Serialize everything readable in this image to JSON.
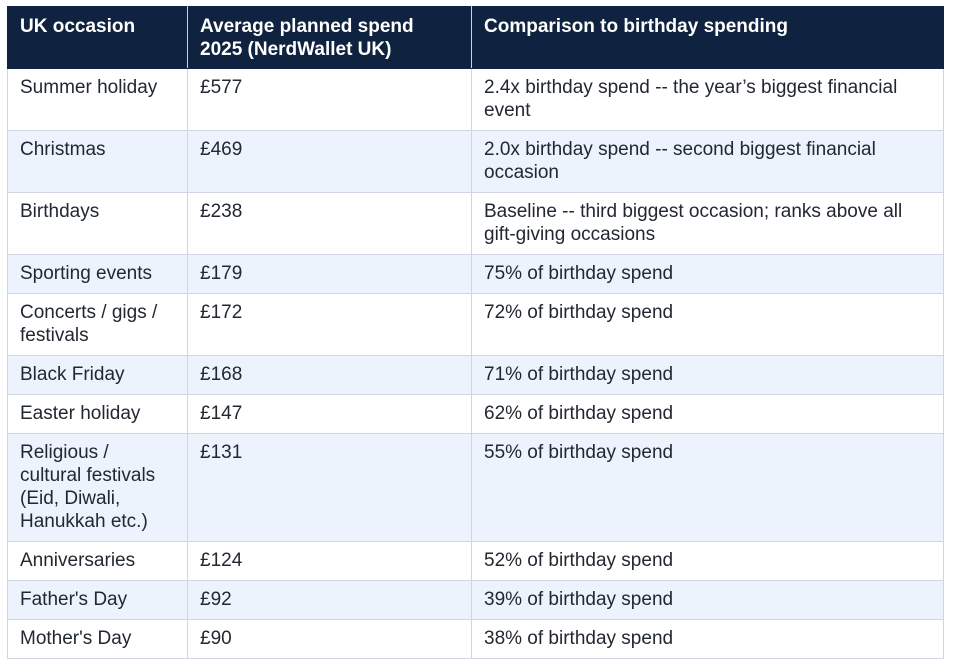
{
  "table": {
    "headers": [
      "UK occasion",
      "Average planned spend 2025 (NerdWallet UK)",
      "Comparison to birthday spending"
    ],
    "rows": [
      {
        "occasion": "Summer holiday",
        "spend": "£577",
        "comparison": "2.4x birthday spend -- the year’s biggest financial event"
      },
      {
        "occasion": "Christmas",
        "spend": "£469",
        "comparison": "2.0x birthday spend -- second biggest financial occasion"
      },
      {
        "occasion": "Birthdays",
        "spend": "£238",
        "comparison": "Baseline -- third biggest occasion; ranks above all gift-giving occasions"
      },
      {
        "occasion": "Sporting events",
        "spend": "£179",
        "comparison": "75% of birthday spend"
      },
      {
        "occasion": "Concerts / gigs / festivals",
        "spend": "£172",
        "comparison": "72% of birthday spend"
      },
      {
        "occasion": "Black Friday",
        "spend": "£168",
        "comparison": "71% of birthday spend"
      },
      {
        "occasion": "Easter holiday",
        "spend": "£147",
        "comparison": "62% of birthday spend"
      },
      {
        "occasion": "Religious / cultural festivals (Eid, Diwali, Hanukkah etc.)",
        "spend": "£131",
        "comparison": "55% of birthday spend"
      },
      {
        "occasion": "Anniversaries",
        "spend": "£124",
        "comparison": "52% of birthday spend"
      },
      {
        "occasion": "Father's Day",
        "spend": "£92",
        "comparison": "39% of birthday spend"
      },
      {
        "occasion": "Mother's Day",
        "spend": "£90",
        "comparison": "38% of birthday spend"
      }
    ]
  },
  "colors": {
    "header_bg": "#0f2240",
    "header_text": "#ffffff",
    "alt_row_bg": "#edf3fd",
    "row_bg": "#ffffff",
    "border": "#cfd6e2"
  }
}
